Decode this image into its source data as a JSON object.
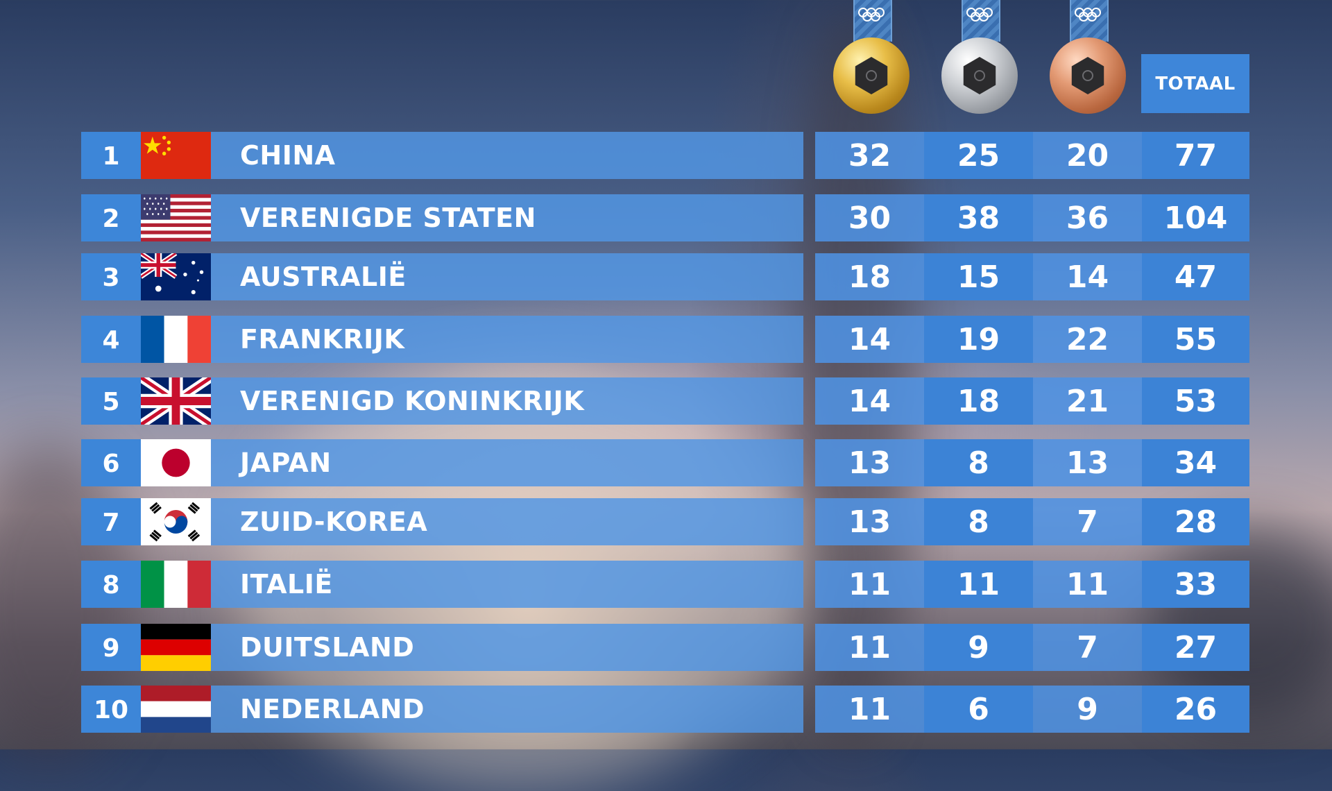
{
  "header": {
    "total_label": "TOTAAL",
    "medal_icons": [
      "gold-medal-icon",
      "silver-medal-icon",
      "bronze-medal-icon"
    ]
  },
  "colors": {
    "cell_blue": "#3c83d6",
    "row_blue": "#5296e4",
    "gold": "#e8be48",
    "silver": "#cfd2d6",
    "bronze": "#e39a74"
  },
  "rows": [
    {
      "rank": "1",
      "flag": "china-flag-icon",
      "country": "CHINA",
      "gold": "32",
      "silver": "25",
      "bronze": "20",
      "total": "77"
    },
    {
      "rank": "2",
      "flag": "usa-flag-icon",
      "country": "VERENIGDE STATEN",
      "gold": "30",
      "silver": "38",
      "bronze": "36",
      "total": "104"
    },
    {
      "rank": "3",
      "flag": "australia-flag-icon",
      "country": "AUSTRALIË",
      "gold": "18",
      "silver": "15",
      "bronze": "14",
      "total": "47"
    },
    {
      "rank": "4",
      "flag": "france-flag-icon",
      "country": "FRANKRIJK",
      "gold": "14",
      "silver": "19",
      "bronze": "22",
      "total": "55"
    },
    {
      "rank": "5",
      "flag": "united-kingdom-flag-icon",
      "country": "VERENIGD KONINKRIJK",
      "gold": "14",
      "silver": "18",
      "bronze": "21",
      "total": "53"
    },
    {
      "rank": "6",
      "flag": "japan-flag-icon",
      "country": "JAPAN",
      "gold": "13",
      "silver": "8",
      "bronze": "13",
      "total": "34"
    },
    {
      "rank": "7",
      "flag": "south-korea-flag-icon",
      "country": "ZUID-KOREA",
      "gold": "13",
      "silver": "8",
      "bronze": "7",
      "total": "28"
    },
    {
      "rank": "8",
      "flag": "italy-flag-icon",
      "country": "ITALIË",
      "gold": "11",
      "silver": "11",
      "bronze": "11",
      "total": "33"
    },
    {
      "rank": "9",
      "flag": "germany-flag-icon",
      "country": "DUITSLAND",
      "gold": "11",
      "silver": "9",
      "bronze": "7",
      "total": "27"
    },
    {
      "rank": "10",
      "flag": "netherlands-flag-icon",
      "country": "NEDERLAND",
      "gold": "11",
      "silver": "6",
      "bronze": "9",
      "total": "26"
    }
  ]
}
